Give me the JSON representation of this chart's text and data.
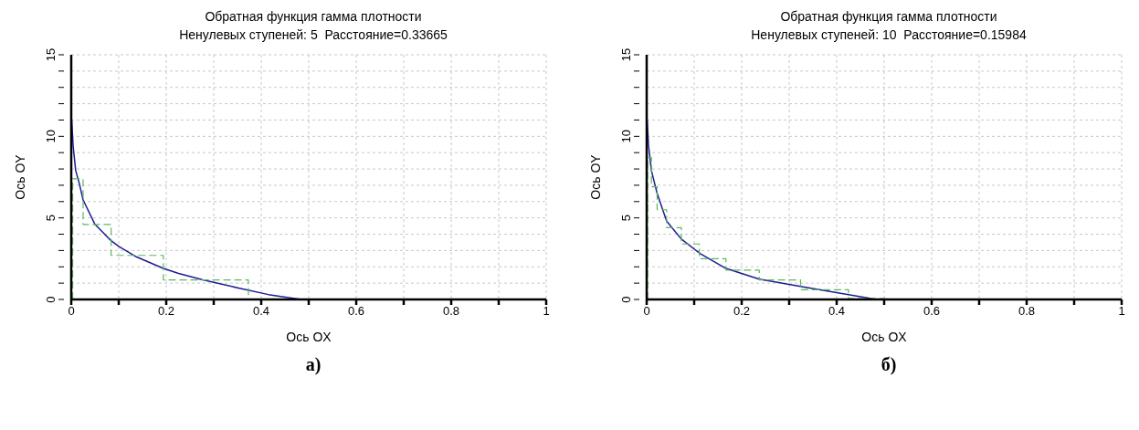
{
  "chart_data": [
    {
      "type": "line",
      "title": "Обратная функция гамма плотности",
      "subtitle": "Ненулевых ступеней: 5  Расстояние=0.33665",
      "xlabel": "Ось OX",
      "ylabel": "Ось OY",
      "annotations": [
        "а)"
      ],
      "xlim": [
        0,
        1
      ],
      "ylim": [
        0,
        15
      ],
      "xticks": [
        0,
        {
          "value": 0.1,
          "label": null
        },
        0.2,
        {
          "value": 0.3,
          "label": null
        },
        0.4,
        {
          "value": 0.5,
          "label": null
        },
        0.6,
        {
          "value": 0.7,
          "label": null
        },
        0.8,
        {
          "value": 0.9,
          "label": null
        },
        1
      ],
      "yticks": [
        0,
        {
          "value": 1,
          "label": null
        },
        {
          "value": 2,
          "label": null
        },
        {
          "value": 3,
          "label": null
        },
        {
          "value": 4,
          "label": null
        },
        5,
        {
          "value": 6,
          "label": null
        },
        {
          "value": 7,
          "label": null
        },
        {
          "value": 8,
          "label": null
        },
        {
          "value": 9,
          "label": null
        },
        10,
        {
          "value": 11,
          "label": null
        },
        {
          "value": 12,
          "label": null
        },
        {
          "value": 13,
          "label": null
        },
        {
          "value": 14,
          "label": null
        },
        15
      ],
      "grid": true,
      "marker": "none",
      "series": [
        {
          "type": "line",
          "color": "#1c1c94",
          "line_style": "solid",
          "x": [
            0.001,
            0.004,
            0.0094,
            0.017,
            0.025,
            0.05,
            0.084,
            0.1,
            0.138,
            0.194,
            0.226,
            0.277,
            0.352,
            0.415,
            0.484
          ],
          "values": [
            11,
            9.4,
            7.9,
            7.1,
            6.1,
            4.6,
            3.6,
            3.25,
            2.6,
            1.9,
            1.6,
            1.2,
            0.7,
            0.3,
            0
          ]
        },
        {
          "type": "step",
          "color": "#5cb85c",
          "line_style": "dashed",
          "x": [
            0.003,
            0.003,
            0.025,
            0.084,
            0.194,
            0.373
          ],
          "values": [
            0,
            7.4,
            4.6,
            2.7,
            1.2,
            0
          ]
        }
      ]
    },
    {
      "type": "line",
      "title": "Обратная функция гамма плотности",
      "subtitle": "Ненулевых ступеней: 10  Расстояние=0.15984",
      "xlabel": "Ось OX",
      "ylabel": "Ось OY",
      "annotations": [
        "б)"
      ],
      "xlim": [
        0,
        1
      ],
      "ylim": [
        0,
        15
      ],
      "xticks": [
        0,
        {
          "value": 0.1,
          "label": null
        },
        0.2,
        {
          "value": 0.3,
          "label": null
        },
        0.4,
        {
          "value": 0.5,
          "label": null
        },
        0.6,
        {
          "value": 0.7,
          "label": null
        },
        0.8,
        {
          "value": 0.9,
          "label": null
        },
        1
      ],
      "yticks": [
        0,
        {
          "value": 1,
          "label": null
        },
        {
          "value": 2,
          "label": null
        },
        {
          "value": 3,
          "label": null
        },
        {
          "value": 4,
          "label": null
        },
        5,
        {
          "value": 6,
          "label": null
        },
        {
          "value": 7,
          "label": null
        },
        {
          "value": 8,
          "label": null
        },
        {
          "value": 9,
          "label": null
        },
        10,
        {
          "value": 11,
          "label": null
        },
        {
          "value": 12,
          "label": null
        },
        {
          "value": 13,
          "label": null
        },
        {
          "value": 14,
          "label": null
        },
        15
      ],
      "grid": true,
      "marker": "none",
      "series": [
        {
          "type": "line",
          "color": "#1c1c94",
          "line_style": "solid",
          "x": [
            0.001,
            0.004,
            0.01,
            0.022,
            0.042,
            0.073,
            0.113,
            0.167,
            0.237,
            0.324,
            0.425,
            0.484
          ],
          "values": [
            11,
            9.4,
            7.9,
            6.5,
            4.8,
            3.7,
            2.8,
            1.9,
            1.25,
            0.8,
            0.3,
            0
          ]
        },
        {
          "type": "step",
          "color": "#5cb85c",
          "line_style": "dashed",
          "x": [
            0.002,
            0.002,
            0.01,
            0.022,
            0.042,
            0.073,
            0.111,
            0.167,
            0.237,
            0.324,
            0.425,
            0.502
          ],
          "values": [
            0,
            8.7,
            6.9,
            5.5,
            4.4,
            3.4,
            2.5,
            1.8,
            1.2,
            0.6,
            0.05,
            0
          ]
        }
      ]
    }
  ]
}
